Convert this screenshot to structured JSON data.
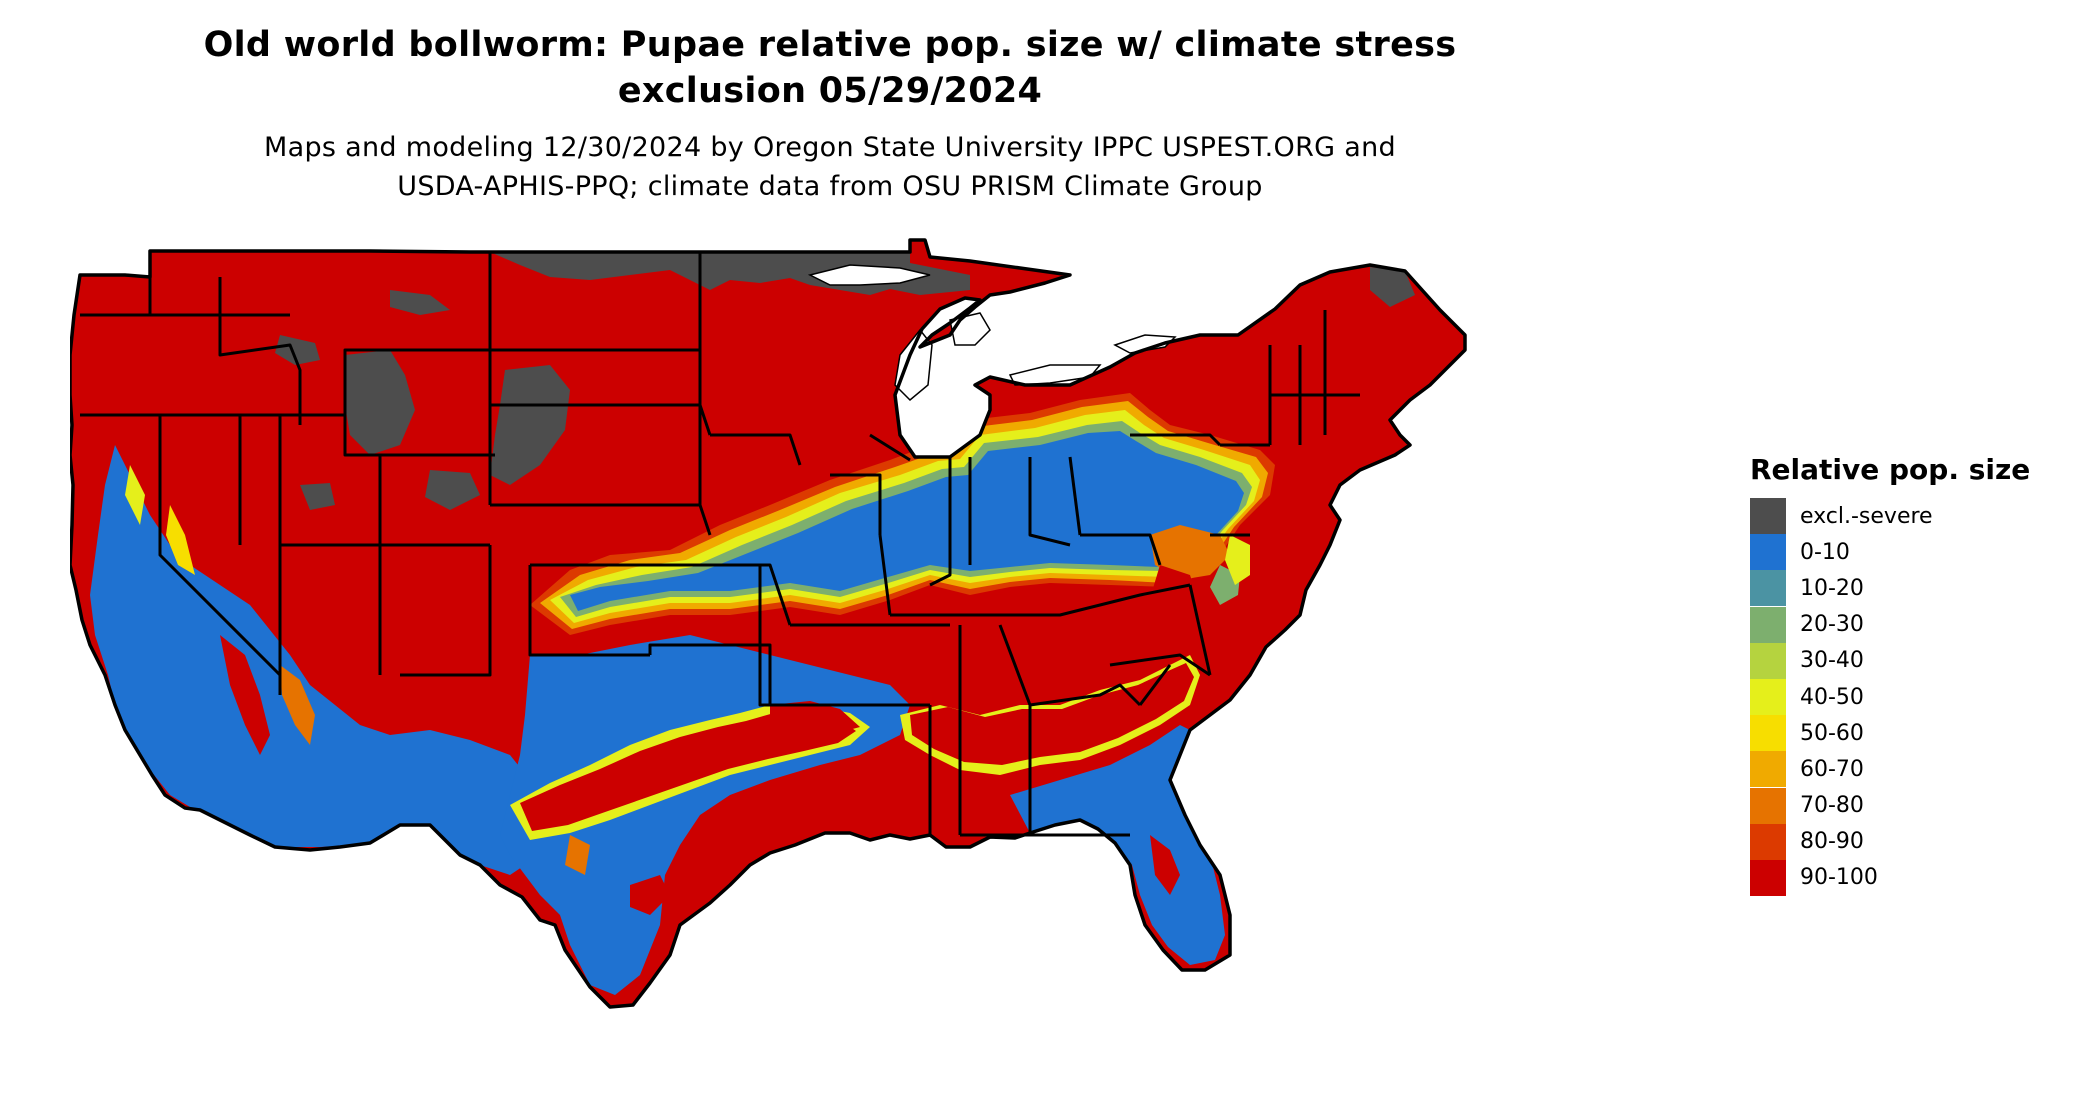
{
  "title": {
    "line1": "Old world bollworm: Pupae relative pop. size w/ climate stress",
    "line2": "exclusion 05/29/2024"
  },
  "subtitle": {
    "line1": "Maps and modeling 12/30/2024 by Oregon State University IPPC USPEST.ORG and",
    "line2": "USDA-APHIS-PPQ; climate data from OSU PRISM Climate Group"
  },
  "legend": {
    "title": "Relative pop. size",
    "items": [
      {
        "label": "excl.-severe",
        "color": "#4d4d4d"
      },
      {
        "label": "0-10",
        "color": "#1f72d1"
      },
      {
        "label": "10-20",
        "color": "#4b93a3"
      },
      {
        "label": "20-30",
        "color": "#7daf6e"
      },
      {
        "label": "30-40",
        "color": "#b5d33f"
      },
      {
        "label": "40-50",
        "color": "#e5ef1b"
      },
      {
        "label": "50-60",
        "color": "#f7de00"
      },
      {
        "label": "60-70",
        "color": "#f0aa00"
      },
      {
        "label": "70-80",
        "color": "#e67300"
      },
      {
        "label": "80-90",
        "color": "#dc3a00"
      },
      {
        "label": "90-100",
        "color": "#cc0000"
      }
    ]
  },
  "map": {
    "region": "contiguous United States",
    "boundary_color": "#000000"
  }
}
